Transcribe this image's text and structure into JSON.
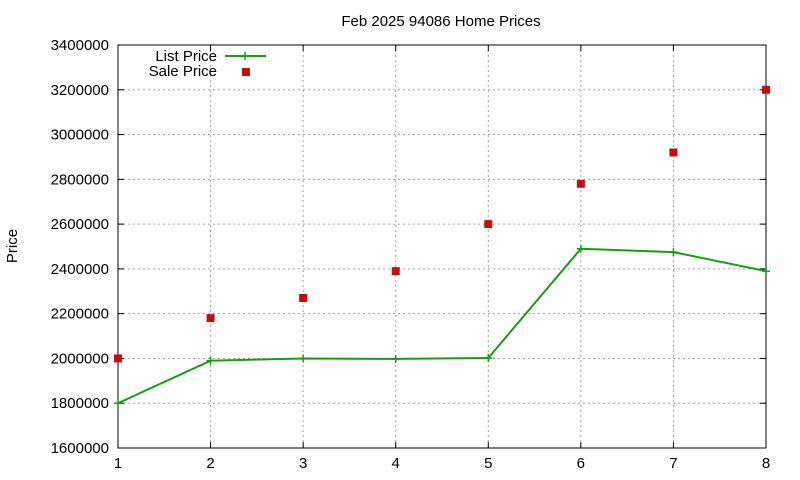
{
  "chart_data": {
    "type": "line",
    "title": "Feb 2025 94086 Home Prices",
    "xlabel": "",
    "ylabel": "Price",
    "x": [
      1,
      2,
      3,
      4,
      5,
      6,
      7,
      8
    ],
    "xlim": [
      1,
      8
    ],
    "ylim": [
      1600000,
      3400000
    ],
    "xticks": [
      "1",
      "2",
      "3",
      "4",
      "5",
      "6",
      "7",
      "8"
    ],
    "yticks": [
      "1600000",
      "1800000",
      "2000000",
      "2200000",
      "2400000",
      "2600000",
      "2800000",
      "3000000",
      "3200000",
      "3400000"
    ],
    "grid": true,
    "legend_position": "top-left",
    "series": [
      {
        "name": "List Price",
        "style": "line+plus-markers",
        "color": "#1a9b14",
        "values": [
          1800000,
          1990000,
          2000000,
          1998000,
          2002000,
          2490000,
          2475000,
          2390000
        ]
      },
      {
        "name": "Sale Price",
        "style": "square-markers",
        "color": "#c01010",
        "values": [
          2000000,
          2180000,
          2270000,
          2390000,
          2600000,
          2780000,
          2920000,
          3200000
        ]
      }
    ]
  }
}
